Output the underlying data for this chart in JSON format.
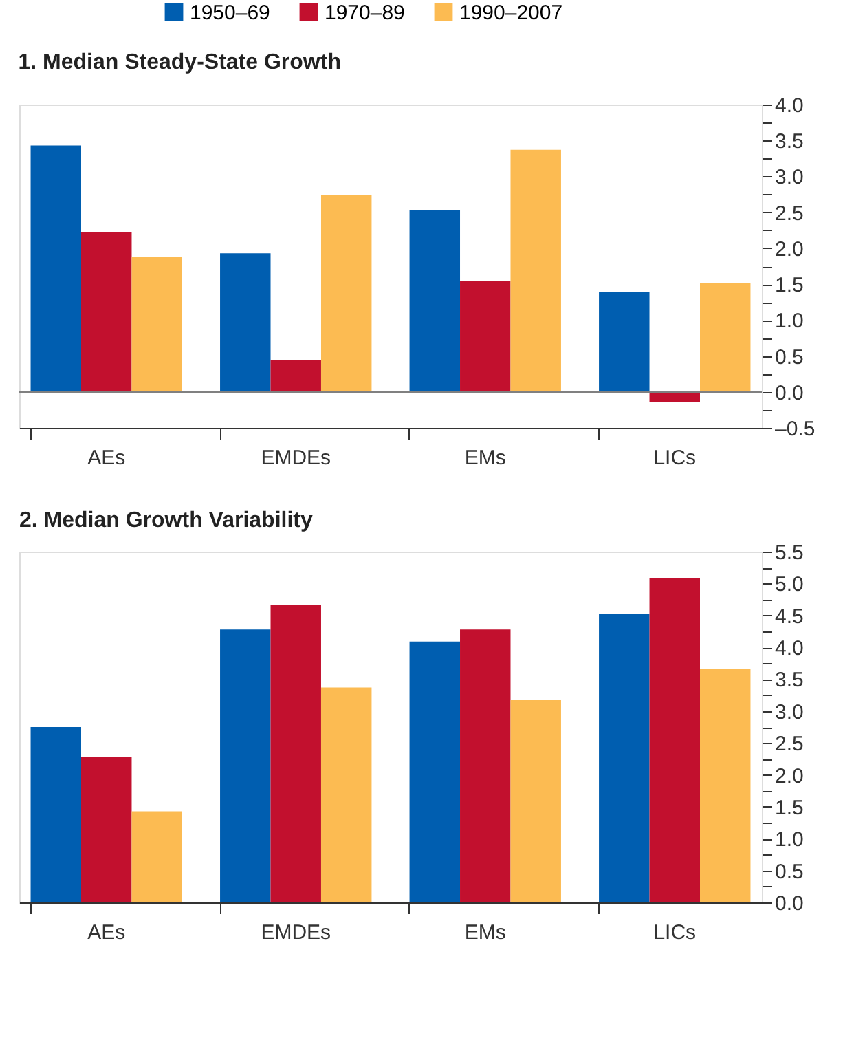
{
  "chart_data": [
    {
      "type": "bar",
      "title": "1. Median Steady-State Growth",
      "categories": [
        "AEs",
        "EMDEs",
        "EMs",
        "LICs"
      ],
      "series": [
        {
          "name": "1950–69",
          "color": "#005eb0",
          "values": [
            3.43,
            1.93,
            2.53,
            1.39
          ]
        },
        {
          "name": "1970–89",
          "color": "#c2102e",
          "values": [
            2.22,
            0.44,
            1.55,
            -0.14
          ]
        },
        {
          "name": "1990–2007",
          "color": "#fcbb52",
          "values": [
            1.88,
            2.74,
            3.37,
            1.52
          ]
        }
      ],
      "ylim": [
        -0.5,
        4.0
      ],
      "yticks": [
        {
          "value": -0.5,
          "label": "–0.5"
        },
        {
          "value": -0.25,
          "label": null
        },
        {
          "value": 0,
          "label": "0.0"
        },
        {
          "value": 0.25,
          "label": null
        },
        {
          "value": 0.5,
          "label": "0.5"
        },
        {
          "value": 0.75,
          "label": null
        },
        {
          "value": 1,
          "label": "1.0"
        },
        {
          "value": 1.25,
          "label": null
        },
        {
          "value": 1.5,
          "label": "1.5"
        },
        {
          "value": 1.75,
          "label": null
        },
        {
          "value": 2,
          "label": "2.0"
        },
        {
          "value": 2.25,
          "label": null
        },
        {
          "value": 2.5,
          "label": "2.5"
        },
        {
          "value": 2.75,
          "label": null
        },
        {
          "value": 3,
          "label": "3.0"
        },
        {
          "value": 3.25,
          "label": null
        },
        {
          "value": 3.5,
          "label": "3.5"
        },
        {
          "value": 3.75,
          "label": null
        },
        {
          "value": 4,
          "label": "4.0"
        }
      ],
      "ref_lines": [
        {
          "axis": "y",
          "value": 0,
          "color": "#808080"
        }
      ],
      "legend": "top",
      "grid": false
    },
    {
      "type": "bar",
      "title": "2. Median Growth Variability",
      "categories": [
        "AEs",
        "EMDEs",
        "EMs",
        "LICs"
      ],
      "series": [
        {
          "color": "#005eb0",
          "values": [
            2.75,
            4.28,
            4.09,
            4.53
          ]
        },
        {
          "color": "#c2102e",
          "values": [
            2.28,
            4.66,
            4.28,
            5.08
          ]
        },
        {
          "color": "#fcbb52",
          "values": [
            1.43,
            3.37,
            3.17,
            3.66
          ]
        }
      ],
      "ylim": [
        0,
        5.5
      ],
      "yticks": [
        {
          "value": 0,
          "label": "0.0"
        },
        {
          "value": 0.25,
          "label": null
        },
        {
          "value": 0.5,
          "label": "0.5"
        },
        {
          "value": 0.75,
          "label": null
        },
        {
          "value": 1,
          "label": "1.0"
        },
        {
          "value": 1.25,
          "label": null
        },
        {
          "value": 1.5,
          "label": "1.5"
        },
        {
          "value": 1.75,
          "label": null
        },
        {
          "value": 2,
          "label": "2.0"
        },
        {
          "value": 2.25,
          "label": null
        },
        {
          "value": 2.5,
          "label": "2.5"
        },
        {
          "value": 2.75,
          "label": null
        },
        {
          "value": 3,
          "label": "3.0"
        },
        {
          "value": 3.25,
          "label": null
        },
        {
          "value": 3.5,
          "label": "3.5"
        },
        {
          "value": 3.75,
          "label": null
        },
        {
          "value": 4,
          "label": "4.0"
        },
        {
          "value": 4.25,
          "label": null
        },
        {
          "value": 4.5,
          "label": "4.5"
        },
        {
          "value": 4.75,
          "label": null
        },
        {
          "value": 5,
          "label": "5.0"
        },
        {
          "value": 5.25,
          "label": null
        },
        {
          "value": 5.5,
          "label": "5.5"
        }
      ],
      "legend": false,
      "grid": false
    }
  ]
}
